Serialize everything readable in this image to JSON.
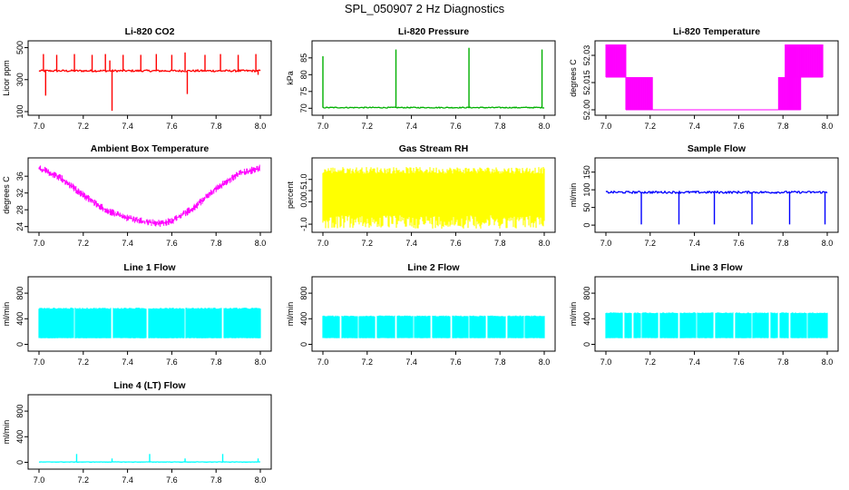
{
  "figure": {
    "title": "SPL_050907  2 Hz Diagnostics"
  },
  "chart_data": [
    {
      "type": "line",
      "title": "Li-820 CO2",
      "xlabel": "",
      "ylabel": "Licor ppm",
      "color": "#ff0000",
      "xlim": [
        7.0,
        8.0
      ],
      "ylim": [
        100,
        520
      ],
      "x_ticks": [
        "7.0",
        "7.2",
        "7.4",
        "7.6",
        "7.8",
        "8.0"
      ],
      "y_ticks": [
        {
          "v": 100,
          "label": "100"
        },
        {
          "v": 300,
          "label": "300"
        },
        {
          "v": 500,
          "label": "500"
        }
      ],
      "baseline": 355,
      "noise": 6,
      "band_style": false,
      "spikes": [
        {
          "x": 7.02,
          "y": 460
        },
        {
          "x": 7.03,
          "y": 200
        },
        {
          "x": 7.08,
          "y": 455
        },
        {
          "x": 7.16,
          "y": 460
        },
        {
          "x": 7.24,
          "y": 455
        },
        {
          "x": 7.3,
          "y": 460
        },
        {
          "x": 7.32,
          "y": 420
        },
        {
          "x": 7.33,
          "y": 105
        },
        {
          "x": 7.38,
          "y": 455
        },
        {
          "x": 7.46,
          "y": 455
        },
        {
          "x": 7.53,
          "y": 460
        },
        {
          "x": 7.6,
          "y": 455
        },
        {
          "x": 7.66,
          "y": 470
        },
        {
          "x": 7.67,
          "y": 210
        },
        {
          "x": 7.75,
          "y": 455
        },
        {
          "x": 7.82,
          "y": 460
        },
        {
          "x": 7.9,
          "y": 455
        },
        {
          "x": 7.98,
          "y": 460
        },
        {
          "x": 7.99,
          "y": 330
        }
      ]
    },
    {
      "type": "line",
      "title": "Li-820 Pressure",
      "xlabel": "",
      "ylabel": "kPa",
      "color": "#00b000",
      "xlim": [
        7.0,
        8.0
      ],
      "ylim": [
        69,
        89
      ],
      "x_ticks": [
        "7.0",
        "7.2",
        "7.4",
        "7.6",
        "7.8",
        "8.0"
      ],
      "y_ticks": [
        {
          "v": 70,
          "label": "70"
        },
        {
          "v": 75,
          "label": "75"
        },
        {
          "v": 80,
          "label": "80"
        },
        {
          "v": 85,
          "label": "85"
        }
      ],
      "baseline": 70.2,
      "noise": 0.15,
      "band_style": false,
      "spikes": [
        {
          "x": 7.0,
          "y": 85.5
        },
        {
          "x": 7.33,
          "y": 87.5
        },
        {
          "x": 7.66,
          "y": 88
        },
        {
          "x": 7.99,
          "y": 87.5
        }
      ]
    },
    {
      "type": "line",
      "title": "Li-820 Temperature",
      "xlabel": "",
      "ylabel": "degrees C",
      "color": "#ff00ff",
      "xlim": [
        7.0,
        8.0
      ],
      "ylim": [
        51.999,
        52.036
      ],
      "x_ticks": [
        "7.0",
        "7.2",
        "7.4",
        "7.6",
        "7.8",
        "8.0"
      ],
      "y_ticks": [
        {
          "v": 52.0,
          "label": "52.00"
        },
        {
          "v": 52.015,
          "label": "52.015"
        },
        {
          "v": 52.03,
          "label": "52.03"
        }
      ],
      "band_style": true,
      "steps": [
        {
          "x0": 7.0,
          "x1": 7.09,
          "lo": 52.018,
          "hi": 52.036
        },
        {
          "x0": 7.09,
          "x1": 7.21,
          "lo": 52.0,
          "hi": 52.018
        },
        {
          "x0": 7.21,
          "x1": 7.78,
          "lo": 52.0,
          "hi": 52.0
        },
        {
          "x0": 7.78,
          "x1": 7.88,
          "lo": 52.0,
          "hi": 52.018
        },
        {
          "x0": 7.81,
          "x1": 7.98,
          "lo": 52.018,
          "hi": 52.036
        }
      ]
    },
    {
      "type": "line",
      "title": "Ambient Box Temperature",
      "xlabel": "",
      "ylabel": "degrees C",
      "color": "#ff00ff",
      "xlim": [
        7.0,
        8.0
      ],
      "ylim": [
        23.5,
        39.5
      ],
      "x_ticks": [
        "7.0",
        "7.2",
        "7.4",
        "7.6",
        "7.8",
        "8.0"
      ],
      "y_ticks": [
        {
          "v": 24,
          "label": "24"
        },
        {
          "v": 28,
          "label": "28"
        },
        {
          "v": 32,
          "label": "32"
        },
        {
          "v": 36,
          "label": "36"
        }
      ],
      "band_style": false,
      "curve": [
        {
          "x": 7.0,
          "y": 38
        },
        {
          "x": 7.1,
          "y": 35.5
        },
        {
          "x": 7.2,
          "y": 31.5
        },
        {
          "x": 7.3,
          "y": 28
        },
        {
          "x": 7.4,
          "y": 26
        },
        {
          "x": 7.5,
          "y": 25
        },
        {
          "x": 7.55,
          "y": 24.8
        },
        {
          "x": 7.6,
          "y": 25.3
        },
        {
          "x": 7.7,
          "y": 28.5
        },
        {
          "x": 7.8,
          "y": 33
        },
        {
          "x": 7.9,
          "y": 36.5
        },
        {
          "x": 8.0,
          "y": 38
        }
      ],
      "noise": 0.9
    },
    {
      "type": "area",
      "title": "Gas Stream RH",
      "xlabel": "",
      "ylabel": "percent",
      "color": "#ffff00",
      "xlim": [
        7.0,
        8.0
      ],
      "ylim": [
        -1.2,
        1.8
      ],
      "x_ticks": [
        "7.0",
        "7.2",
        "7.4",
        "7.6",
        "7.8",
        "8.0"
      ],
      "y_ticks": [
        {
          "v": -1.0,
          "label": "-1.0"
        },
        {
          "v": 0.0,
          "label": "0.0"
        },
        {
          "v": 0.5,
          "label": "0.5"
        },
        {
          "v": 1.0,
          "label": "1.0"
        }
      ],
      "band_style": true,
      "band": {
        "lo": -0.6,
        "hi": 1.35,
        "jitter": 0.3
      }
    },
    {
      "type": "line",
      "title": "Sample Flow",
      "xlabel": "",
      "ylabel": "ml/min",
      "color": "#0000ff",
      "xlim": [
        7.0,
        8.0
      ],
      "ylim": [
        -10,
        180
      ],
      "x_ticks": [
        "7.0",
        "7.2",
        "7.4",
        "7.6",
        "7.8",
        "8.0"
      ],
      "y_ticks": [
        {
          "v": 0,
          "label": "0"
        },
        {
          "v": 50,
          "label": "50"
        },
        {
          "v": 100,
          "label": "100"
        },
        {
          "v": 150,
          "label": "150"
        }
      ],
      "baseline": 93,
      "noise": 3,
      "band_style": false,
      "spikes": [
        {
          "x": 7.16,
          "y": 2
        },
        {
          "x": 7.33,
          "y": 2
        },
        {
          "x": 7.49,
          "y": 2
        },
        {
          "x": 7.66,
          "y": 2
        },
        {
          "x": 7.83,
          "y": 2
        },
        {
          "x": 7.99,
          "y": 2
        }
      ]
    },
    {
      "type": "area",
      "title": "Line 1 Flow",
      "xlabel": "",
      "ylabel": "ml/min",
      "color": "#00ffff",
      "xlim": [
        7.0,
        8.0
      ],
      "ylim": [
        -50,
        1000
      ],
      "x_ticks": [
        "7.0",
        "7.2",
        "7.4",
        "7.6",
        "7.8",
        "8.0"
      ],
      "y_ticks": [
        {
          "v": 0,
          "label": "0"
        },
        {
          "v": 400,
          "label": "400"
        },
        {
          "v": 800,
          "label": "800"
        }
      ],
      "band_style": true,
      "band": {
        "lo": 100,
        "hi": 560,
        "jitter": 20
      },
      "gaps": [
        7.16,
        7.33,
        7.49,
        7.66,
        7.83
      ]
    },
    {
      "type": "area",
      "title": "Line 2 Flow",
      "xlabel": "",
      "ylabel": "ml/min",
      "color": "#00ffff",
      "xlim": [
        7.0,
        8.0
      ],
      "ylim": [
        -50,
        1000
      ],
      "x_ticks": [
        "7.0",
        "7.2",
        "7.4",
        "7.6",
        "7.8",
        "8.0"
      ],
      "y_ticks": [
        {
          "v": 0,
          "label": "0"
        },
        {
          "v": 400,
          "label": "400"
        },
        {
          "v": 800,
          "label": "800"
        }
      ],
      "band_style": true,
      "band": {
        "lo": 100,
        "hi": 440,
        "jitter": 15
      },
      "gaps": [
        7.08,
        7.16,
        7.24,
        7.33,
        7.41,
        7.49,
        7.58,
        7.66,
        7.74,
        7.83,
        7.91
      ]
    },
    {
      "type": "area",
      "title": "Line 3 Flow",
      "xlabel": "",
      "ylabel": "ml/min",
      "color": "#00ffff",
      "xlim": [
        7.0,
        8.0
      ],
      "ylim": [
        -50,
        1000
      ],
      "x_ticks": [
        "7.0",
        "7.2",
        "7.4",
        "7.6",
        "7.8",
        "8.0"
      ],
      "y_ticks": [
        {
          "v": 0,
          "label": "0"
        },
        {
          "v": 400,
          "label": "400"
        },
        {
          "v": 800,
          "label": "800"
        }
      ],
      "band_style": true,
      "band": {
        "lo": 100,
        "hi": 490,
        "jitter": 15
      },
      "gaps": [
        7.08,
        7.12,
        7.16,
        7.24,
        7.33,
        7.41,
        7.49,
        7.58,
        7.66,
        7.74,
        7.78,
        7.83,
        7.91
      ]
    },
    {
      "type": "line",
      "title": "Line 4 (LT) Flow",
      "xlabel": "",
      "ylabel": "ml/min",
      "color": "#00ffff",
      "xlim": [
        7.0,
        8.0
      ],
      "ylim": [
        -50,
        1000
      ],
      "x_ticks": [
        "7.0",
        "7.2",
        "7.4",
        "7.6",
        "7.8",
        "8.0"
      ],
      "y_ticks": [
        {
          "v": 0,
          "label": "0"
        },
        {
          "v": 400,
          "label": "400"
        },
        {
          "v": 800,
          "label": "800"
        }
      ],
      "baseline": 5,
      "noise": 3,
      "band_style": false,
      "spikes": [
        {
          "x": 7.17,
          "y": 130
        },
        {
          "x": 7.33,
          "y": 60
        },
        {
          "x": 7.5,
          "y": 130
        },
        {
          "x": 7.66,
          "y": 60
        },
        {
          "x": 7.83,
          "y": 130
        },
        {
          "x": 7.99,
          "y": 60
        }
      ]
    }
  ]
}
